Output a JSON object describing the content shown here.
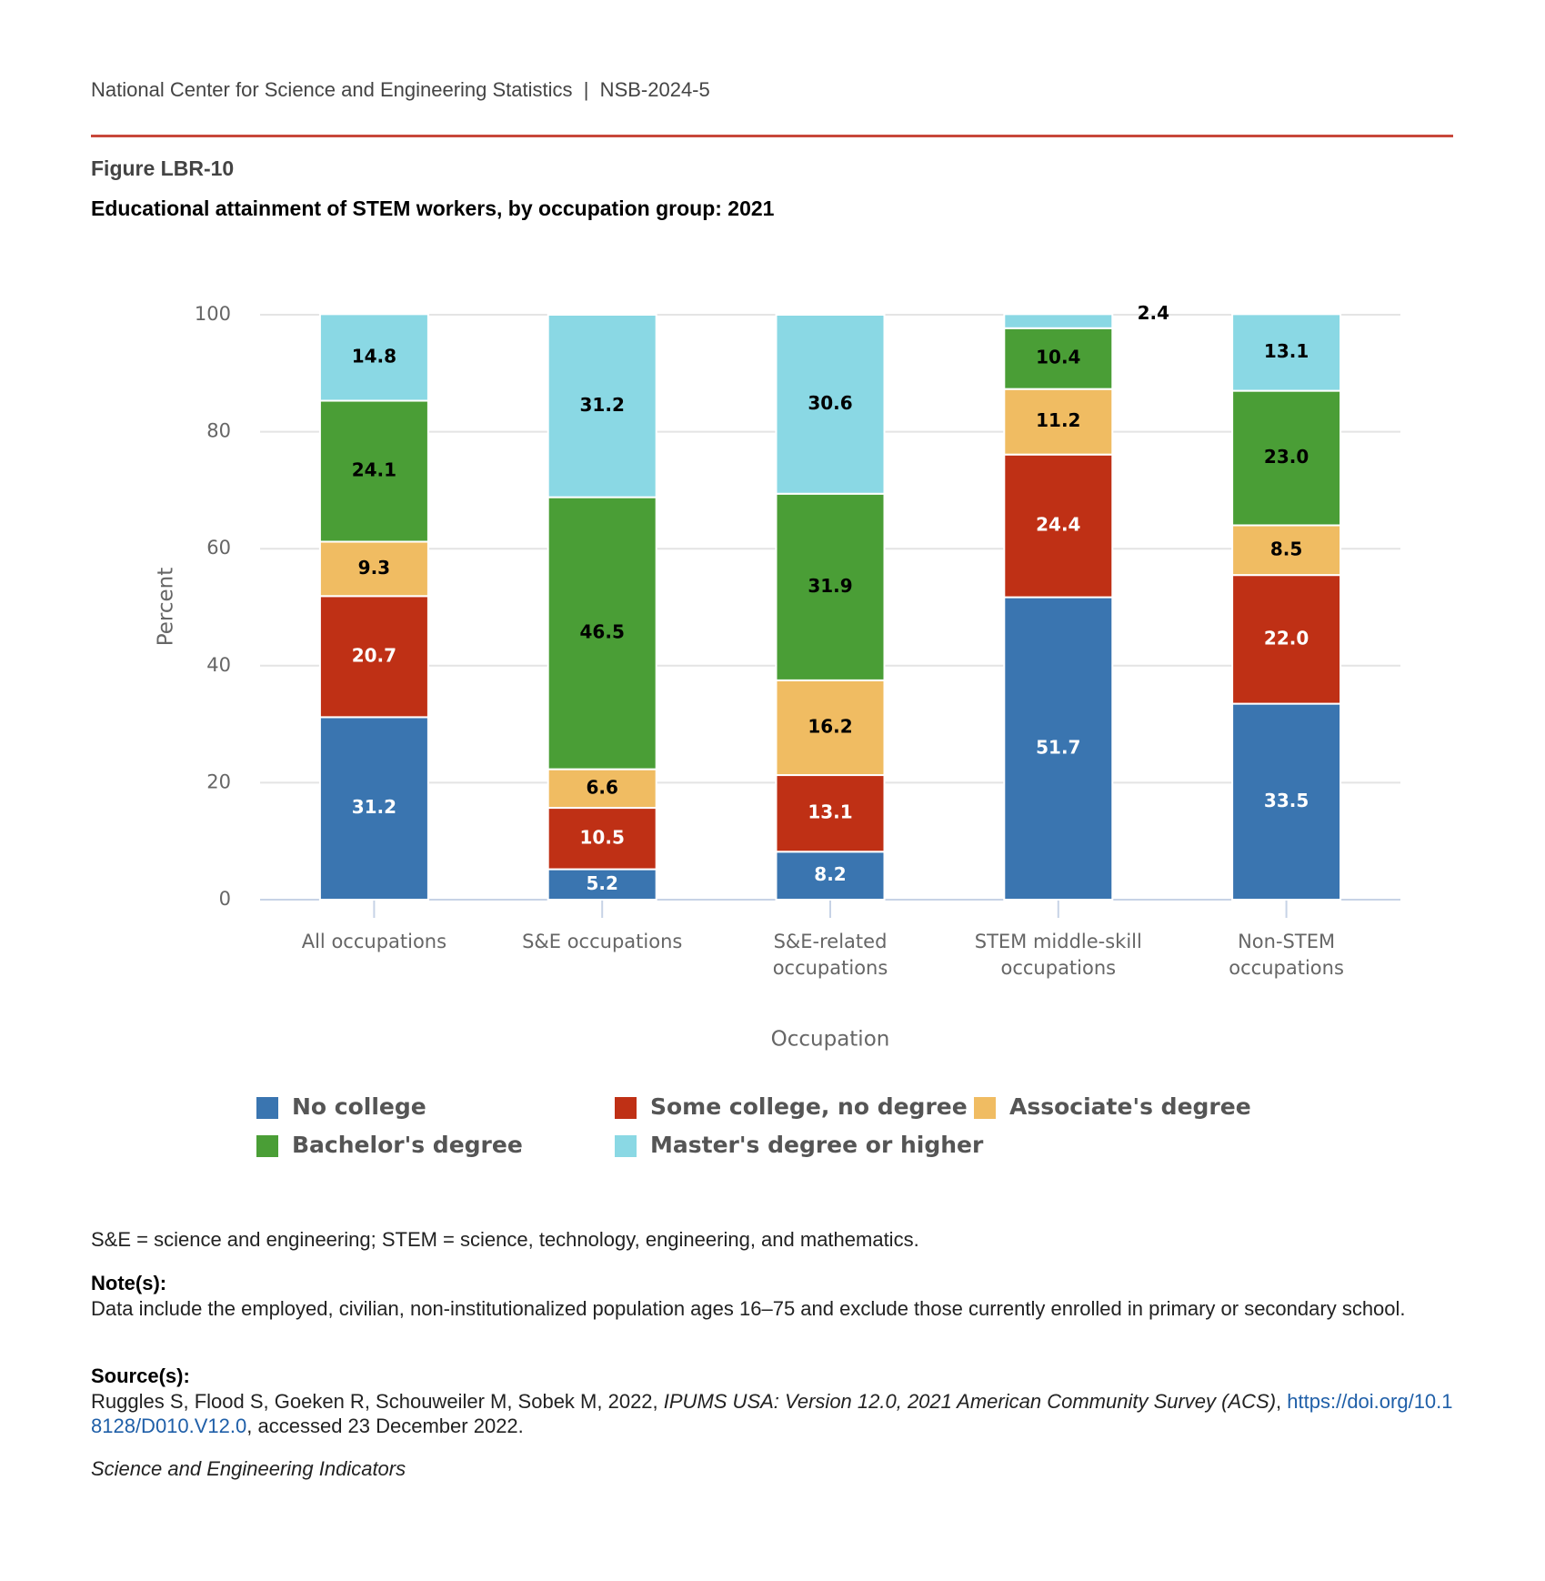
{
  "header": "National Center for Science and Engineering Statistics  |  NSB-2024-5",
  "figure_label": "Figure LBR-10",
  "chart_data": {
    "type": "stacked_bar",
    "title": "Educational attainment of STEM workers, by occupation group: 2021",
    "y_label": "Percent",
    "x_label": "Occupation",
    "categories": [
      [
        "All occupations"
      ],
      [
        "S&E occupations"
      ],
      [
        "S&E-related",
        "occupations"
      ],
      [
        "STEM middle-skill",
        "occupations"
      ],
      [
        "Non-STEM",
        "occupations"
      ]
    ],
    "series": [
      {
        "name": "No college",
        "color": "#3a75b0",
        "label_color": "#ffffff",
        "values": [
          31.2,
          5.2,
          8.2,
          51.7,
          33.5
        ]
      },
      {
        "name": "Some college, no degree",
        "color": "#bf3015",
        "label_color": "#ffffff",
        "values": [
          20.7,
          10.5,
          13.1,
          24.4,
          22.0
        ],
        "value_labels": [
          "20.7",
          "10.5",
          "13.1",
          "24.4",
          "22.0"
        ]
      },
      {
        "name": "Associate's degree",
        "color": "#f0bc62",
        "label_color": "#000000",
        "values": [
          9.3,
          6.6,
          16.2,
          11.2,
          8.5
        ]
      },
      {
        "name": "Bachelor's degree",
        "color": "#4a9e36",
        "label_color": "#000000",
        "values": [
          24.1,
          46.5,
          31.9,
          10.4,
          23.0
        ],
        "value_labels": [
          "24.1",
          "46.5",
          "31.9",
          "10.4",
          "23.0"
        ]
      },
      {
        "name": "Master's degree or higher",
        "color": "#8ad8e4",
        "label_color": "#000000",
        "values": [
          14.8,
          31.2,
          30.6,
          2.4,
          13.1
        ]
      }
    ],
    "ylim": [
      0,
      100
    ],
    "yticks": [
      0,
      20,
      40,
      60,
      80,
      100
    ],
    "grid": true
  },
  "abbreviations": "S&E = science and engineering; STEM = science, technology, engineering, and mathematics.",
  "note_heading": "Note(s):",
  "note": "Data include the employed, civilian, non-institutionalized population ages 16–75 and exclude those currently enrolled in primary or secondary school.",
  "source_heading": "Source(s):",
  "source": {
    "authors": "Ruggles S, Flood S, Goeken R, Schouweiler M, Sobek M, 2022, ",
    "title": "IPUMS USA: Version 12.0, 2021 American Community Survey (ACS)",
    "separator": ", ",
    "link": "https://doi.org/10.18128/D010.V12.0",
    "accessed": ", accessed 23 December 2022."
  },
  "publication": "Science and Engineering Indicators"
}
